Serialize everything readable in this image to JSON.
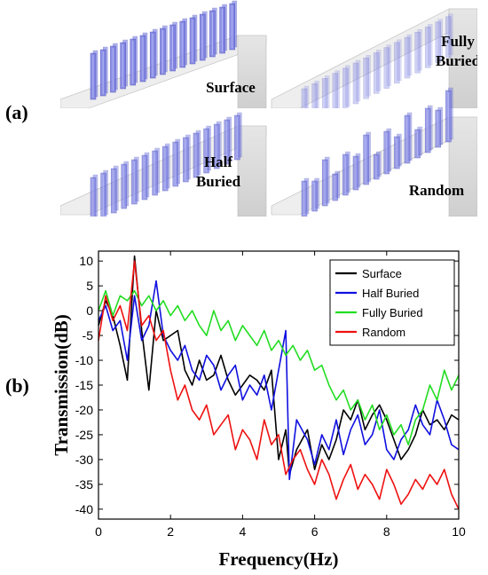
{
  "figure": {
    "panel_a_label": "(a)",
    "panel_b_label": "(b)",
    "renders": [
      {
        "id": "surface",
        "label_lines": [
          "Surface"
        ]
      },
      {
        "id": "fully-buried",
        "label_lines": [
          "Fully",
          "Buried"
        ]
      },
      {
        "id": "half-buried",
        "label_lines": [
          "Half",
          "Buried"
        ]
      },
      {
        "id": "random",
        "label_lines": [
          "Random"
        ]
      }
    ],
    "colors": {
      "slab_top": "#eeeeee",
      "slab_front": "#d9d9d9",
      "pillar": "#7b7fe0",
      "pillar_edge": "#3a3fb8"
    }
  },
  "chart_data": {
    "type": "line",
    "title": "",
    "xlabel": "Frequency(Hz)",
    "ylabel": "Transmission(dB)",
    "xlim": [
      0,
      10
    ],
    "ylim": [
      -42,
      12
    ],
    "xticks": [
      0,
      2,
      4,
      6,
      8,
      10
    ],
    "yticks": [
      10,
      5,
      0,
      -5,
      -10,
      -15,
      -20,
      -25,
      -30,
      -35,
      -40
    ],
    "grid": false,
    "legend_position": "top-right",
    "series": [
      {
        "name": "Surface",
        "color": "#000000",
        "x": [
          0,
          0.2,
          0.4,
          0.6,
          0.8,
          1.0,
          1.2,
          1.4,
          1.6,
          1.8,
          2.0,
          2.2,
          2.4,
          2.6,
          2.8,
          3.0,
          3.2,
          3.4,
          3.6,
          3.8,
          4.0,
          4.2,
          4.4,
          4.6,
          4.8,
          5.0,
          5.2,
          5.3,
          5.5,
          5.8,
          6.0,
          6.2,
          6.4,
          6.6,
          6.8,
          7.0,
          7.2,
          7.4,
          7.6,
          7.8,
          8.0,
          8.2,
          8.4,
          8.6,
          8.8,
          9.0,
          9.2,
          9.4,
          9.6,
          9.8,
          10.0
        ],
        "y": [
          -3,
          2,
          -1,
          -7,
          -14,
          11,
          -4,
          -16,
          0,
          -6,
          -5,
          -4,
          -12,
          -15,
          -10,
          -14,
          -13,
          -9,
          -14,
          -17,
          -15,
          -13,
          -14,
          -16,
          -12,
          -30,
          -24,
          -33,
          -28,
          -24,
          -32,
          -27,
          -30,
          -26,
          -20,
          -22,
          -18,
          -24,
          -21,
          -19,
          -22,
          -26,
          -30,
          -28,
          -25,
          -20,
          -23,
          -22,
          -24,
          -21,
          -22
        ]
      },
      {
        "name": "Half Buried",
        "color": "#1010e0",
        "x": [
          0,
          0.2,
          0.4,
          0.6,
          0.8,
          1.0,
          1.2,
          1.4,
          1.6,
          1.8,
          2.0,
          2.2,
          2.4,
          2.6,
          2.8,
          3.0,
          3.2,
          3.4,
          3.6,
          3.8,
          4.0,
          4.2,
          4.4,
          4.6,
          4.8,
          5.0,
          5.2,
          5.3,
          5.5,
          5.8,
          6.0,
          6.2,
          6.4,
          6.6,
          6.8,
          7.0,
          7.2,
          7.4,
          7.6,
          7.8,
          8.0,
          8.2,
          8.4,
          8.6,
          8.8,
          9.0,
          9.2,
          9.4,
          9.6,
          9.8,
          10.0
        ],
        "y": [
          -2,
          1,
          -4,
          -2,
          -10,
          3,
          -6,
          -3,
          6,
          -5,
          -8,
          -10,
          -7,
          -12,
          -14,
          -9,
          -11,
          -16,
          -13,
          -11,
          -18,
          -15,
          -17,
          -13,
          -20,
          -12,
          -4,
          -34,
          -22,
          -26,
          -31,
          -25,
          -28,
          -22,
          -29,
          -24,
          -21,
          -27,
          -25,
          -20,
          -28,
          -30,
          -26,
          -24,
          -19,
          -23,
          -25,
          -18,
          -22,
          -27,
          -28
        ]
      },
      {
        "name": "Fully Buried",
        "color": "#22dd22",
        "x": [
          0,
          0.2,
          0.4,
          0.6,
          0.8,
          1.0,
          1.2,
          1.4,
          1.6,
          1.8,
          2.0,
          2.2,
          2.4,
          2.6,
          2.8,
          3.0,
          3.2,
          3.4,
          3.6,
          3.8,
          4.0,
          4.2,
          4.4,
          4.6,
          4.8,
          5.0,
          5.2,
          5.4,
          5.6,
          5.8,
          6.0,
          6.2,
          6.4,
          6.6,
          6.8,
          7.0,
          7.2,
          7.4,
          7.6,
          7.8,
          8.0,
          8.2,
          8.4,
          8.6,
          8.8,
          9.0,
          9.2,
          9.4,
          9.6,
          9.8,
          10.0
        ],
        "y": [
          0,
          4,
          -1,
          3,
          2,
          4,
          1,
          3,
          0,
          2,
          -1,
          1,
          -2,
          0,
          -3,
          -5,
          0,
          -4,
          -2,
          -6,
          -3,
          -5,
          -7,
          -4,
          -8,
          -6,
          -9,
          -7,
          -10,
          -8,
          -12,
          -11,
          -15,
          -18,
          -16,
          -20,
          -18,
          -22,
          -19,
          -24,
          -21,
          -25,
          -23,
          -27,
          -22,
          -20,
          -15,
          -18,
          -12,
          -16,
          -13
        ]
      },
      {
        "name": "Random",
        "color": "#ee1111",
        "x": [
          0,
          0.2,
          0.4,
          0.6,
          0.8,
          1.0,
          1.2,
          1.4,
          1.6,
          1.8,
          2.0,
          2.2,
          2.4,
          2.6,
          2.8,
          3.0,
          3.2,
          3.4,
          3.6,
          3.8,
          4.0,
          4.2,
          4.4,
          4.6,
          4.8,
          5.0,
          5.2,
          5.4,
          5.6,
          5.8,
          6.0,
          6.2,
          6.4,
          6.6,
          6.8,
          7.0,
          7.2,
          7.4,
          7.6,
          7.8,
          8.0,
          8.2,
          8.4,
          8.6,
          8.8,
          9.0,
          9.2,
          9.4,
          9.6,
          9.8,
          10.0
        ],
        "y": [
          -6,
          3,
          -2,
          1,
          -4,
          10,
          -3,
          -1,
          -6,
          -4,
          -12,
          -18,
          -15,
          -20,
          -22,
          -19,
          -25,
          -23,
          -21,
          -28,
          -24,
          -26,
          -30,
          -22,
          -27,
          -25,
          -33,
          -30,
          -28,
          -32,
          -35,
          -30,
          -33,
          -38,
          -34,
          -31,
          -36,
          -33,
          -35,
          -38,
          -32,
          -35,
          -39,
          -37,
          -34,
          -36,
          -33,
          -35,
          -32,
          -37,
          -40
        ]
      }
    ]
  }
}
